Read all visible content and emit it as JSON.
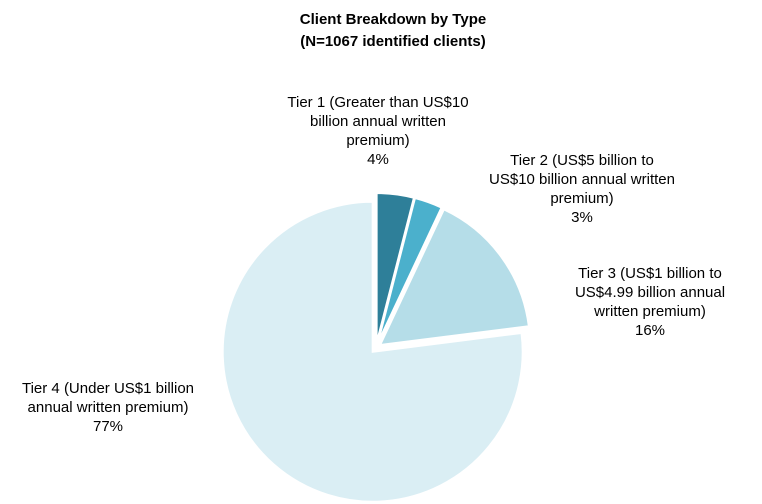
{
  "chart_data": {
    "type": "pie",
    "title": "Client Breakdown by Type",
    "subtitle": "(N=1067 identified clients)",
    "categories": [
      "Tier 1 (Greater than US$10 billion annual written premium)",
      "Tier 2 (US$5 billion to US$10 billion annual written premium)",
      "Tier 3 (US$1 billion to US$4.99 billion annual written premium)",
      "Tier 4 (Under US$1 billion annual written premium)"
    ],
    "values": [
      4,
      3,
      16,
      77
    ],
    "value_labels": [
      "4%",
      "3%",
      "16%",
      "77%"
    ],
    "colors": [
      "#2e7f99",
      "#4bb0cc",
      "#b5dde8",
      "#daeef4"
    ]
  }
}
